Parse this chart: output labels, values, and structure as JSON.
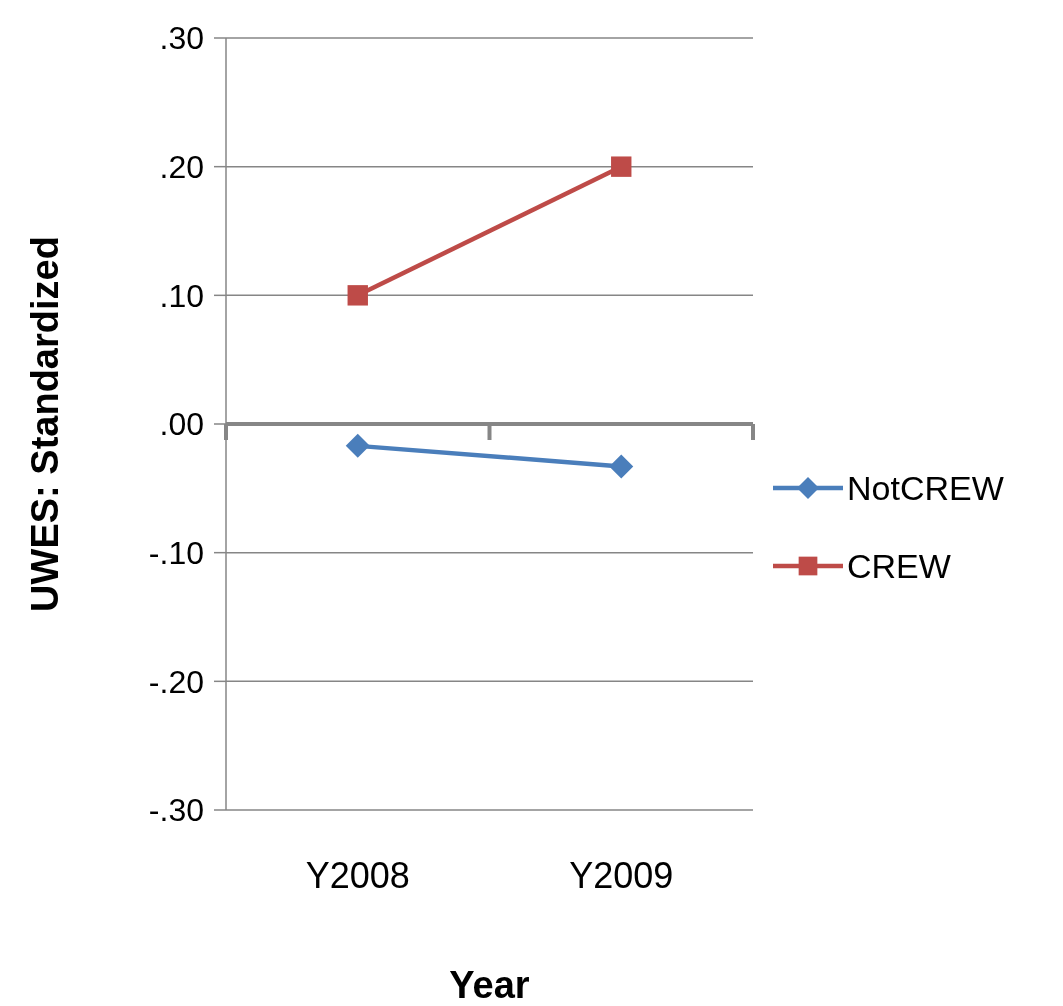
{
  "chart_data": {
    "type": "line",
    "xlabel": "Year",
    "ylabel": "UWES: Standardized",
    "categories": [
      "Y2008",
      "Y2009"
    ],
    "series": [
      {
        "name": "NotCREW",
        "color": "#4a7ebb",
        "marker": "diamond",
        "values": [
          -0.017,
          -0.033
        ]
      },
      {
        "name": "CREW",
        "color": "#be4b48",
        "marker": "square",
        "values": [
          0.1,
          0.2
        ]
      }
    ],
    "ylim": [
      -0.3,
      0.3
    ],
    "yticks": [
      {
        "value": -0.3,
        "label": "-.30"
      },
      {
        "value": -0.2,
        "label": "-.20"
      },
      {
        "value": -0.1,
        "label": "-.10"
      },
      {
        "value": 0,
        "label": ".00"
      },
      {
        "value": 0.1,
        "label": ".10"
      },
      {
        "value": 0.2,
        "label": ".20"
      },
      {
        "value": 0.3,
        "label": ".30"
      }
    ],
    "grid": "y",
    "legend": "right"
  }
}
